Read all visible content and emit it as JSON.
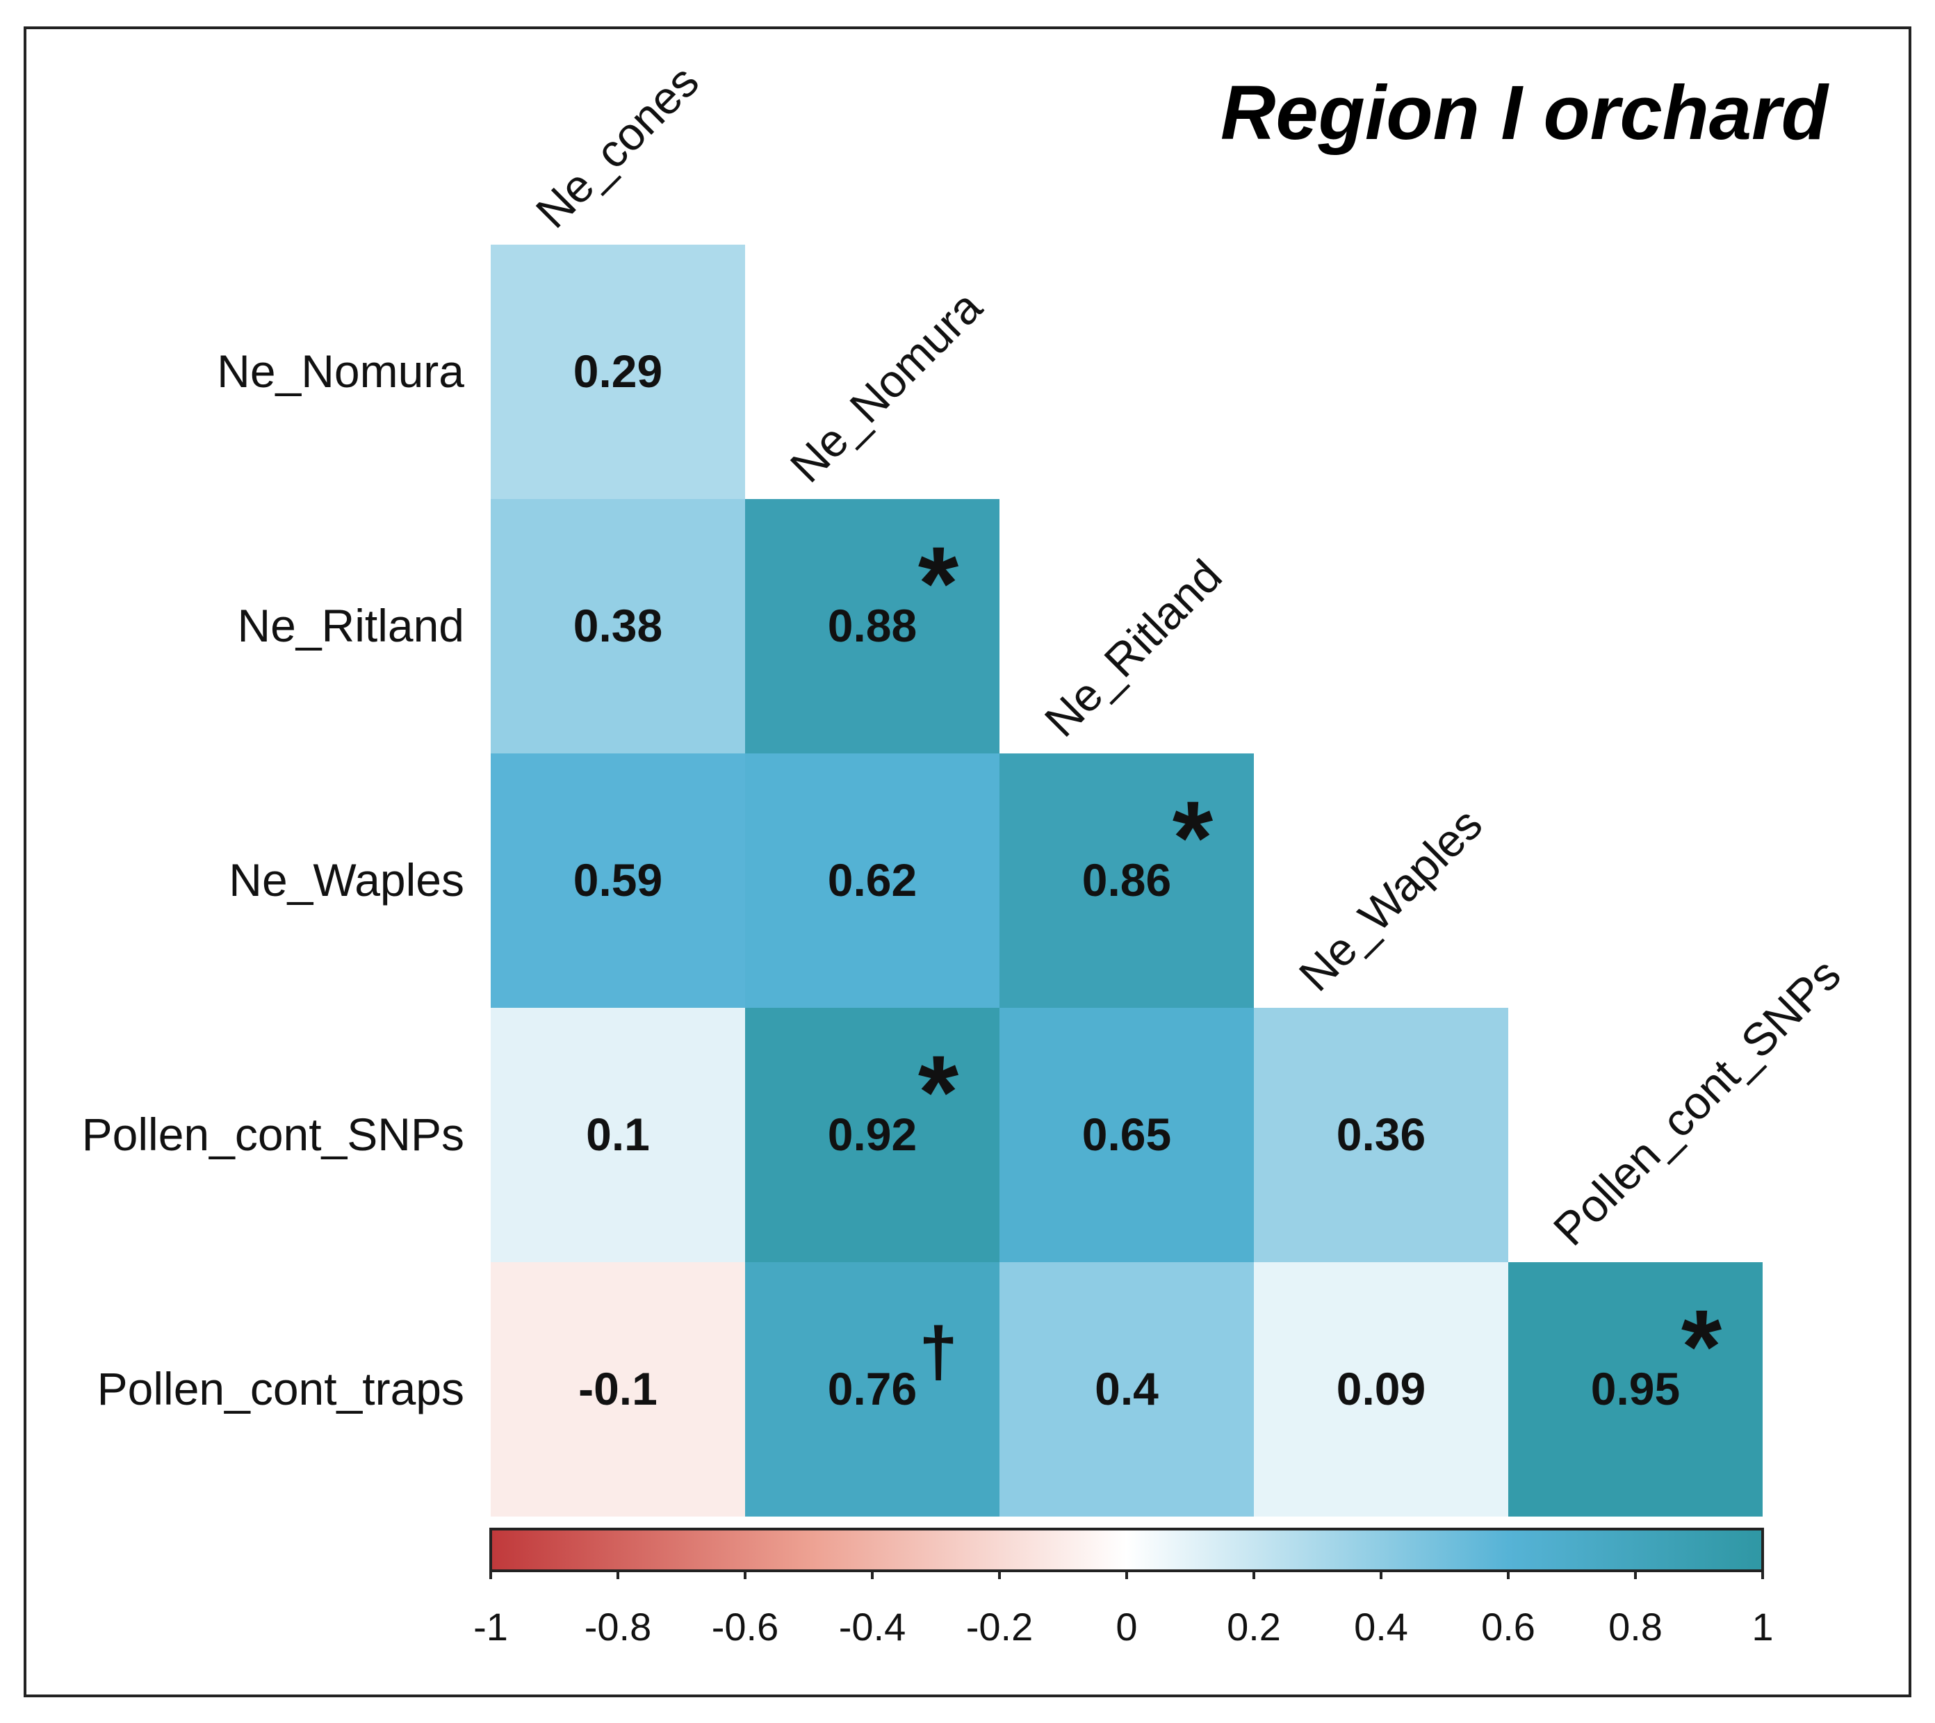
{
  "chart_data": {
    "type": "heatmap",
    "title": "Region I orchard",
    "variables": [
      "Ne_cones",
      "Ne_Nomura",
      "Ne_Ritland",
      "Ne_Waples",
      "Pollen_cont_SNPs",
      "Pollen_cont_traps"
    ],
    "row_labels": [
      "Ne_Nomura",
      "Ne_Ritland",
      "Ne_Waples",
      "Pollen_cont_SNPs",
      "Pollen_cont_traps"
    ],
    "col_labels": [
      "Ne_cones",
      "Ne_Nomura",
      "Ne_Ritland",
      "Ne_Waples",
      "Pollen_cont_SNPs"
    ],
    "cells": [
      {
        "row": 0,
        "col": 0,
        "value": 0.29,
        "label": "0.29",
        "mark": ""
      },
      {
        "row": 1,
        "col": 0,
        "value": 0.38,
        "label": "0.38",
        "mark": ""
      },
      {
        "row": 1,
        "col": 1,
        "value": 0.88,
        "label": "0.88",
        "mark": "*"
      },
      {
        "row": 2,
        "col": 0,
        "value": 0.59,
        "label": "0.59",
        "mark": ""
      },
      {
        "row": 2,
        "col": 1,
        "value": 0.62,
        "label": "0.62",
        "mark": ""
      },
      {
        "row": 2,
        "col": 2,
        "value": 0.86,
        "label": "0.86",
        "mark": "*"
      },
      {
        "row": 3,
        "col": 0,
        "value": 0.1,
        "label": "0.1",
        "mark": ""
      },
      {
        "row": 3,
        "col": 1,
        "value": 0.92,
        "label": "0.92",
        "mark": "*"
      },
      {
        "row": 3,
        "col": 2,
        "value": 0.65,
        "label": "0.65",
        "mark": ""
      },
      {
        "row": 3,
        "col": 3,
        "value": 0.36,
        "label": "0.36",
        "mark": ""
      },
      {
        "row": 4,
        "col": 0,
        "value": -0.1,
        "label": "-0.1",
        "mark": ""
      },
      {
        "row": 4,
        "col": 1,
        "value": 0.76,
        "label": "0.76",
        "mark": "†"
      },
      {
        "row": 4,
        "col": 2,
        "value": 0.4,
        "label": "0.4",
        "mark": ""
      },
      {
        "row": 4,
        "col": 3,
        "value": 0.09,
        "label": "0.09",
        "mark": ""
      },
      {
        "row": 4,
        "col": 4,
        "value": 0.95,
        "label": "0.95",
        "mark": "*"
      }
    ],
    "colorbar": {
      "range": [
        -1,
        1
      ],
      "ticks": [
        -1,
        -0.8,
        -0.6,
        -0.4,
        -0.2,
        0,
        0.2,
        0.4,
        0.6,
        0.8,
        1
      ],
      "tick_labels": [
        "-1",
        "-0.8",
        "-0.6",
        "-0.4",
        "-0.2",
        "0",
        "0.2",
        "0.4",
        "0.6",
        "0.8",
        "1"
      ],
      "colors": {
        "negative": "#c0393b",
        "mid_negative": "#eda192",
        "zero": "#ffffff",
        "mid_positive": "#56b3d6",
        "positive": "#2f97a4"
      }
    },
    "legend_position": "bottom"
  }
}
